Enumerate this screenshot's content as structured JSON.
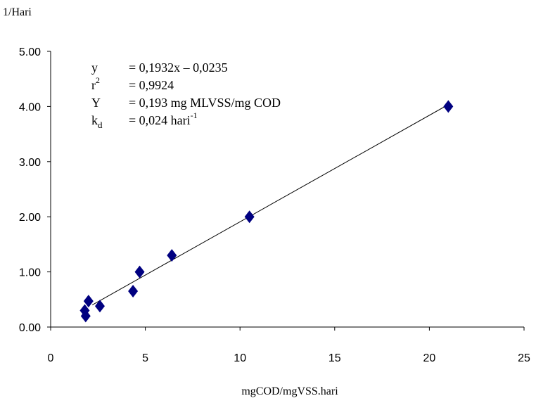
{
  "chart_data": {
    "type": "scatter",
    "title": "",
    "ylabel": "1/Hari",
    "xlabel": "mgCOD/mgVSS.hari",
    "xlim": [
      0,
      25
    ],
    "ylim": [
      0,
      5
    ],
    "x_ticks": [
      "0",
      "5",
      "10",
      "15",
      "20",
      "25"
    ],
    "y_ticks": [
      "0.00",
      "1.00",
      "2.00",
      "3.00",
      "4.00",
      "5.00"
    ],
    "grid": false,
    "marker": "diamond",
    "marker_color": "#000080",
    "points": [
      {
        "x": 1.8,
        "y": 0.3
      },
      {
        "x": 1.85,
        "y": 0.2
      },
      {
        "x": 2.0,
        "y": 0.47
      },
      {
        "x": 2.6,
        "y": 0.38
      },
      {
        "x": 4.35,
        "y": 0.65
      },
      {
        "x": 4.7,
        "y": 1.0
      },
      {
        "x": 6.4,
        "y": 1.3
      },
      {
        "x": 10.5,
        "y": 2.0
      },
      {
        "x": 21.0,
        "y": 4.0
      }
    ],
    "trendline": {
      "slope": 0.1932,
      "intercept": -0.0235,
      "x_range": [
        2.2,
        21.0
      ]
    },
    "annotations": [
      {
        "key": "y",
        "sub": "",
        "sup": "",
        "rhs": "= 0,1932x – 0,0235",
        "rhs_sup": ""
      },
      {
        "key": "r",
        "sub": "",
        "sup": "2",
        "rhs": "= 0,9924",
        "rhs_sup": ""
      },
      {
        "key": "Y",
        "sub": "",
        "sup": "",
        "rhs": "= 0,193 mg MLVSS/mg COD",
        "rhs_sup": ""
      },
      {
        "key": "k",
        "sub": "d",
        "sup": "",
        "rhs": "= 0,024 hari",
        "rhs_sup": "-1"
      }
    ]
  }
}
